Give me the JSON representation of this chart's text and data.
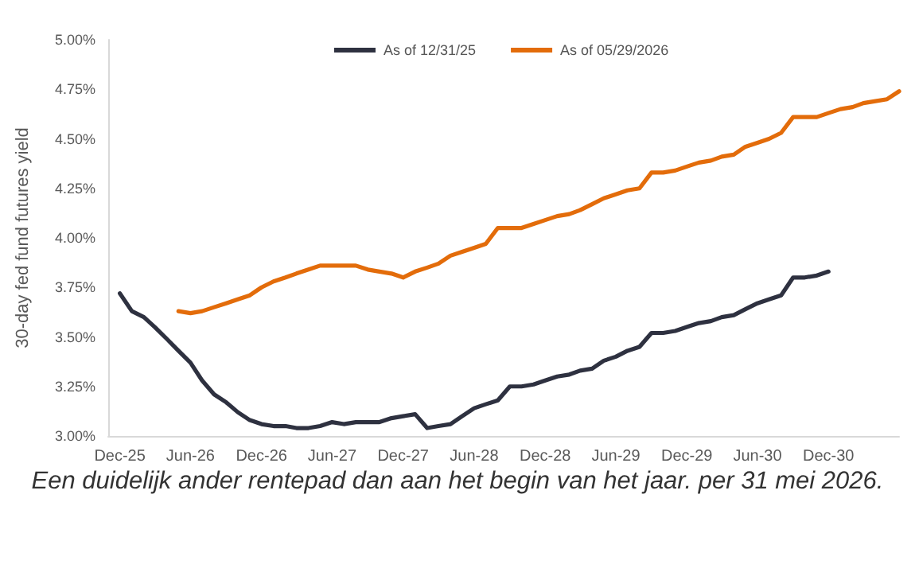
{
  "chart_data": {
    "type": "line",
    "ylabel": "30-day fed fund futures yield",
    "annotations": [
      "Een duidelijk ander rentepad dan aan het begin van het jaar. per 31 mei 2026."
    ],
    "xlim": [
      "2025-11",
      "2031-06"
    ],
    "xticks": [
      {
        "value": "2025-12",
        "label": "Dec-25"
      },
      {
        "value": "2026-06",
        "label": "Jun-26"
      },
      {
        "value": "2026-12",
        "label": "Dec-26"
      },
      {
        "value": "2027-06",
        "label": "Jun-27"
      },
      {
        "value": "2027-12",
        "label": "Dec-27"
      },
      {
        "value": "2028-06",
        "label": "Jun-28"
      },
      {
        "value": "2028-12",
        "label": "Dec-28"
      },
      {
        "value": "2029-06",
        "label": "Jun-29"
      },
      {
        "value": "2029-12",
        "label": "Dec-29"
      },
      {
        "value": "2030-06",
        "label": "Jun-30"
      },
      {
        "value": "2030-12",
        "label": "Dec-30"
      }
    ],
    "ylim": [
      3,
      5
    ],
    "yticks": [
      {
        "value": 3,
        "label": "3.00%"
      },
      {
        "value": 3.25,
        "label": "3.25%"
      },
      {
        "value": 3.5,
        "label": "3.50%"
      },
      {
        "value": 3.75,
        "label": "3.75%"
      },
      {
        "value": 4,
        "label": "4.00%"
      },
      {
        "value": 4.25,
        "label": "4.25%"
      },
      {
        "value": 4.5,
        "label": "4.50%"
      },
      {
        "value": 4.75,
        "label": "4.75%"
      },
      {
        "value": 5,
        "label": "5.00%"
      }
    ],
    "grid": false,
    "legend": "top",
    "series": [
      {
        "name": "As of 12/31/25",
        "color": "#2e3140",
        "x": [
          "2025-12",
          "2026-01",
          "2026-02",
          "2026-03",
          "2026-04",
          "2026-05",
          "2026-06",
          "2026-07",
          "2026-08",
          "2026-09",
          "2026-10",
          "2026-11",
          "2026-12",
          "2027-01",
          "2027-02",
          "2027-03",
          "2027-04",
          "2027-05",
          "2027-06",
          "2027-07",
          "2027-08",
          "2027-09",
          "2027-10",
          "2027-11",
          "2027-12",
          "2028-01",
          "2028-02",
          "2028-03",
          "2028-04",
          "2028-05",
          "2028-06",
          "2028-07",
          "2028-08",
          "2028-09",
          "2028-10",
          "2028-11",
          "2028-12",
          "2029-01",
          "2029-02",
          "2029-03",
          "2029-04",
          "2029-05",
          "2029-06",
          "2029-07",
          "2029-08",
          "2029-09",
          "2029-10",
          "2029-11",
          "2029-12",
          "2030-01",
          "2030-02",
          "2030-03",
          "2030-04",
          "2030-05",
          "2030-06",
          "2030-07",
          "2030-08",
          "2030-09",
          "2030-10",
          "2030-11",
          "2030-12"
        ],
        "values": [
          3.72,
          3.63,
          3.6,
          3.55,
          3.49,
          3.43,
          3.37,
          3.28,
          3.21,
          3.17,
          3.12,
          3.08,
          3.06,
          3.05,
          3.05,
          3.04,
          3.04,
          3.05,
          3.07,
          3.06,
          3.07,
          3.07,
          3.07,
          3.09,
          3.1,
          3.11,
          3.04,
          3.05,
          3.06,
          3.1,
          3.14,
          3.16,
          3.18,
          3.25,
          3.25,
          3.26,
          3.28,
          3.3,
          3.31,
          3.33,
          3.34,
          3.38,
          3.4,
          3.43,
          3.45,
          3.52,
          3.52,
          3.53,
          3.55,
          3.57,
          3.58,
          3.6,
          3.61,
          3.64,
          3.67,
          3.69,
          3.71,
          3.8,
          3.8,
          3.81,
          3.83
        ]
      },
      {
        "name": "As of 05/29/2026",
        "color": "#e36c0a",
        "x": [
          "2026-05",
          "2026-06",
          "2026-07",
          "2026-08",
          "2026-09",
          "2026-10",
          "2026-11",
          "2026-12",
          "2027-01",
          "2027-02",
          "2027-03",
          "2027-04",
          "2027-05",
          "2027-06",
          "2027-07",
          "2027-08",
          "2027-09",
          "2027-10",
          "2027-11",
          "2027-12",
          "2028-01",
          "2028-02",
          "2028-03",
          "2028-04",
          "2028-05",
          "2028-06",
          "2028-07",
          "2028-08",
          "2028-09",
          "2028-10",
          "2028-11",
          "2028-12",
          "2029-01",
          "2029-02",
          "2029-03",
          "2029-04",
          "2029-05",
          "2029-06",
          "2029-07",
          "2029-08",
          "2029-09",
          "2029-10",
          "2029-11",
          "2029-12",
          "2030-01",
          "2030-02",
          "2030-03",
          "2030-04",
          "2030-05",
          "2030-06",
          "2030-07",
          "2030-08",
          "2030-09",
          "2030-10",
          "2030-11",
          "2030-12",
          "2031-01",
          "2031-02",
          "2031-03",
          "2031-04",
          "2031-05",
          "2031-06"
        ],
        "values": [
          3.63,
          3.62,
          3.63,
          3.65,
          3.67,
          3.69,
          3.71,
          3.75,
          3.78,
          3.8,
          3.82,
          3.84,
          3.86,
          3.86,
          3.86,
          3.86,
          3.84,
          3.83,
          3.82,
          3.8,
          3.83,
          3.85,
          3.87,
          3.91,
          3.93,
          3.95,
          3.97,
          4.05,
          4.05,
          4.05,
          4.07,
          4.09,
          4.11,
          4.12,
          4.14,
          4.17,
          4.2,
          4.22,
          4.24,
          4.25,
          4.33,
          4.33,
          4.34,
          4.36,
          4.38,
          4.39,
          4.41,
          4.42,
          4.46,
          4.48,
          4.5,
          4.53,
          4.61,
          4.61,
          4.61,
          4.63,
          4.65,
          4.66,
          4.68,
          4.69,
          4.7,
          4.74
        ]
      }
    ]
  }
}
